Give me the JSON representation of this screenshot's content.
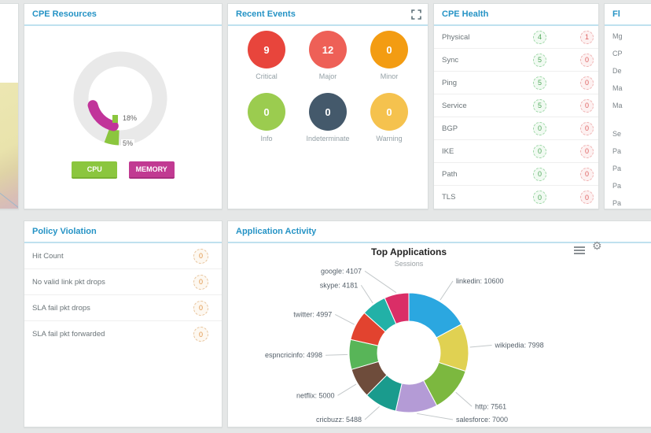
{
  "cpe_resources": {
    "title": "CPE Resources",
    "labels": {
      "cpu_pct": "18%",
      "memory_pct": "5%"
    },
    "buttons": [
      {
        "label": "CPU",
        "color": "#8bc63e"
      },
      {
        "label": "MEMORY",
        "color": "#c13a92"
      }
    ]
  },
  "recent_events": {
    "title": "Recent Events",
    "items": [
      {
        "label": "Critical",
        "count": "9",
        "color": "#e8453c"
      },
      {
        "label": "Major",
        "count": "12",
        "color": "#ee6057"
      },
      {
        "label": "Minor",
        "count": "0",
        "color": "#f39c12"
      },
      {
        "label": "Info",
        "count": "0",
        "color": "#9bcc4f"
      },
      {
        "label": "Indeterminate",
        "count": "0",
        "color": "#44596b"
      },
      {
        "label": "Warning",
        "count": "0",
        "color": "#f5c24e"
      }
    ]
  },
  "cpe_health": {
    "title": "CPE Health",
    "rows": [
      {
        "label": "Physical",
        "ok": "4",
        "fail": "1"
      },
      {
        "label": "Sync",
        "ok": "5",
        "fail": "0"
      },
      {
        "label": "Ping",
        "ok": "5",
        "fail": "0"
      },
      {
        "label": "Service",
        "ok": "5",
        "fail": "0"
      },
      {
        "label": "BGP",
        "ok": "0",
        "fail": "0"
      },
      {
        "label": "IKE",
        "ok": "0",
        "fail": "0"
      },
      {
        "label": "Path",
        "ok": "0",
        "fail": "0"
      },
      {
        "label": "TLS",
        "ok": "0",
        "fail": "0"
      }
    ]
  },
  "right_panel": {
    "title": "Fl",
    "rows": [
      "Mg",
      "CP",
      "De",
      "Ma",
      "Ma",
      "Se",
      "Pa",
      "Pa",
      "Pa",
      "Pa"
    ]
  },
  "policy_violation": {
    "title": "Policy Violation",
    "rows": [
      {
        "label": "Hit Count",
        "count": "0"
      },
      {
        "label": "No valid link pkt drops",
        "count": "0"
      },
      {
        "label": "SLA fail pkt drops",
        "count": "0"
      },
      {
        "label": "SLA fail pkt forwarded",
        "count": "0"
      }
    ]
  },
  "application_activity": {
    "title": "Application Activity"
  },
  "chart_data": [
    {
      "type": "donut",
      "title": "Top Applications",
      "subtitle": "Sessions",
      "legend_position": "callout-labels",
      "series": [
        {
          "name": "linkedin",
          "value": 10600,
          "color": "#2ba7e0"
        },
        {
          "name": "wikipedia",
          "value": 7998,
          "color": "#e0d152"
        },
        {
          "name": "http",
          "value": 7561,
          "color": "#7cb83f"
        },
        {
          "name": "salesforce",
          "value": 7000,
          "color": "#b49bd6"
        },
        {
          "name": "cricbuzz",
          "value": 5488,
          "color": "#1a9b8d"
        },
        {
          "name": "netflix",
          "value": 5000,
          "color": "#6e4c3b"
        },
        {
          "name": "espncricinfo",
          "value": 4998,
          "color": "#58b558"
        },
        {
          "name": "twitter",
          "value": 4997,
          "color": "#e2432f"
        },
        {
          "name": "skype",
          "value": 4181,
          "color": "#22b1a7"
        },
        {
          "name": "google",
          "value": 4107,
          "color": "#da2e67"
        }
      ]
    },
    {
      "type": "donut",
      "title": "CPE Resources",
      "unit": "percent",
      "series": [
        {
          "name": "CPU",
          "value": 18,
          "color": "#8bc63e"
        },
        {
          "name": "MEMORY",
          "value": 5,
          "color": "#c13a92"
        }
      ]
    }
  ]
}
